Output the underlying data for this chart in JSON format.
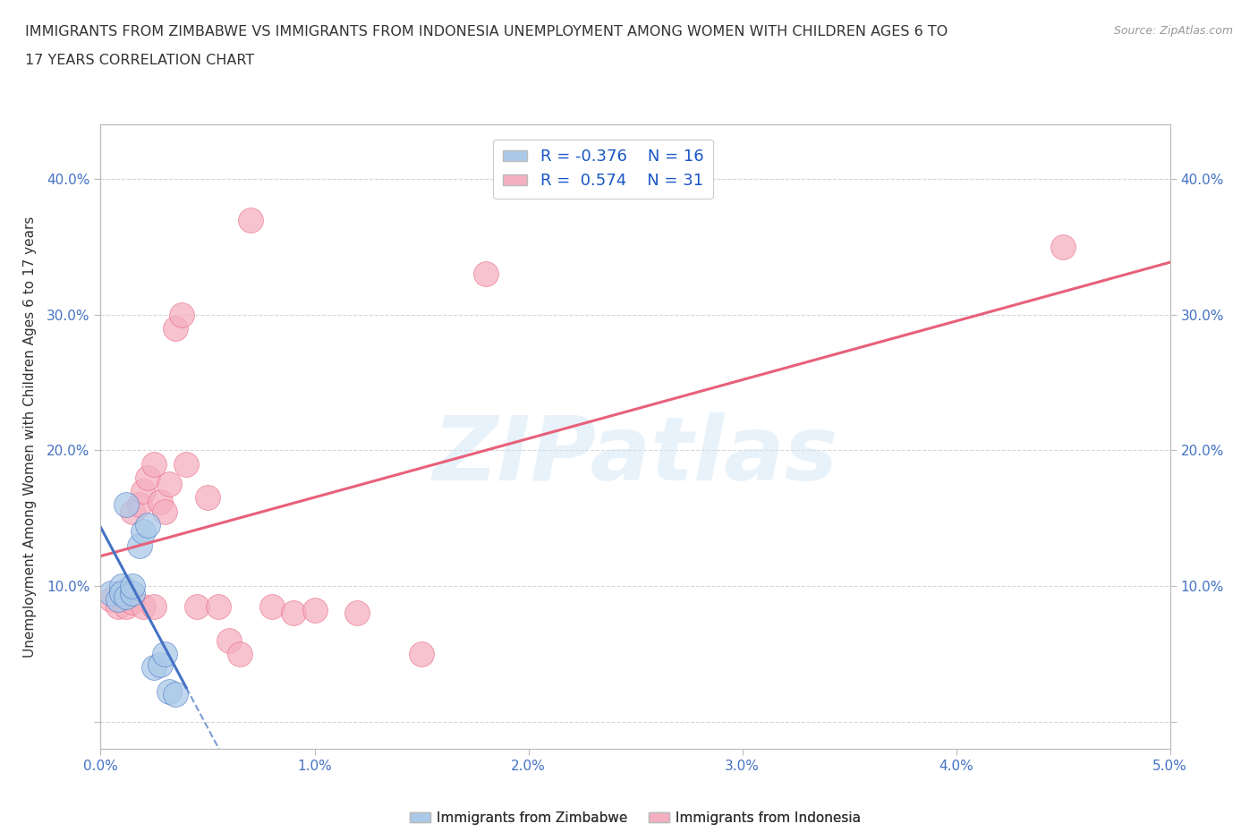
{
  "title_line1": "IMMIGRANTS FROM ZIMBABWE VS IMMIGRANTS FROM INDONESIA UNEMPLOYMENT AMONG WOMEN WITH CHILDREN AGES 6 TO",
  "title_line2": "17 YEARS CORRELATION CHART",
  "source_text": "Source: ZipAtlas.com",
  "watermark": "ZIPatlas",
  "ylabel": "Unemployment Among Women with Children Ages 6 to 17 years",
  "xlim": [
    0.0,
    0.05
  ],
  "ylim": [
    -0.02,
    0.44
  ],
  "xticks": [
    0.0,
    0.01,
    0.02,
    0.03,
    0.04,
    0.05
  ],
  "yticks": [
    0.0,
    0.1,
    0.2,
    0.3,
    0.4
  ],
  "xtick_labels": [
    "0.0%",
    "1.0%",
    "2.0%",
    "3.0%",
    "4.0%",
    "5.0%"
  ],
  "ytick_labels": [
    "",
    "10.0%",
    "20.0%",
    "30.0%",
    "40.0%"
  ],
  "legend_R1": "R = -0.376",
  "legend_N1": "N = 16",
  "legend_R2": "R =  0.574",
  "legend_N2": "N = 31",
  "color_zimbabwe": "#aac9e8",
  "color_indonesia": "#f5afc0",
  "line_color_zimbabwe": "#4472c4",
  "line_color_indonesia": "#e8607a",
  "background_color": "#ffffff",
  "grid_color": "#d8d8d8",
  "zimbabwe_x": [
    0.0005,
    0.0008,
    0.001,
    0.001,
    0.0012,
    0.0015,
    0.0015,
    0.0018,
    0.002,
    0.0022,
    0.0025,
    0.0028,
    0.003,
    0.0032,
    0.0035,
    0.0012
  ],
  "zimbabwe_y": [
    0.095,
    0.09,
    0.1,
    0.095,
    0.092,
    0.095,
    0.1,
    0.13,
    0.14,
    0.145,
    0.04,
    0.042,
    0.05,
    0.022,
    0.02,
    0.16
  ],
  "indonesia_x": [
    0.0005,
    0.0008,
    0.001,
    0.0012,
    0.0015,
    0.0015,
    0.0018,
    0.002,
    0.002,
    0.0022,
    0.0025,
    0.0025,
    0.0028,
    0.003,
    0.0032,
    0.0035,
    0.0038,
    0.004,
    0.0045,
    0.005,
    0.0055,
    0.006,
    0.0065,
    0.007,
    0.008,
    0.009,
    0.01,
    0.012,
    0.015,
    0.018,
    0.045
  ],
  "indonesia_y": [
    0.09,
    0.085,
    0.095,
    0.085,
    0.088,
    0.155,
    0.16,
    0.17,
    0.085,
    0.18,
    0.19,
    0.085,
    0.162,
    0.155,
    0.175,
    0.29,
    0.3,
    0.19,
    0.085,
    0.165,
    0.085,
    0.06,
    0.05,
    0.37,
    0.085,
    0.08,
    0.082,
    0.08,
    0.05,
    0.33,
    0.35
  ]
}
